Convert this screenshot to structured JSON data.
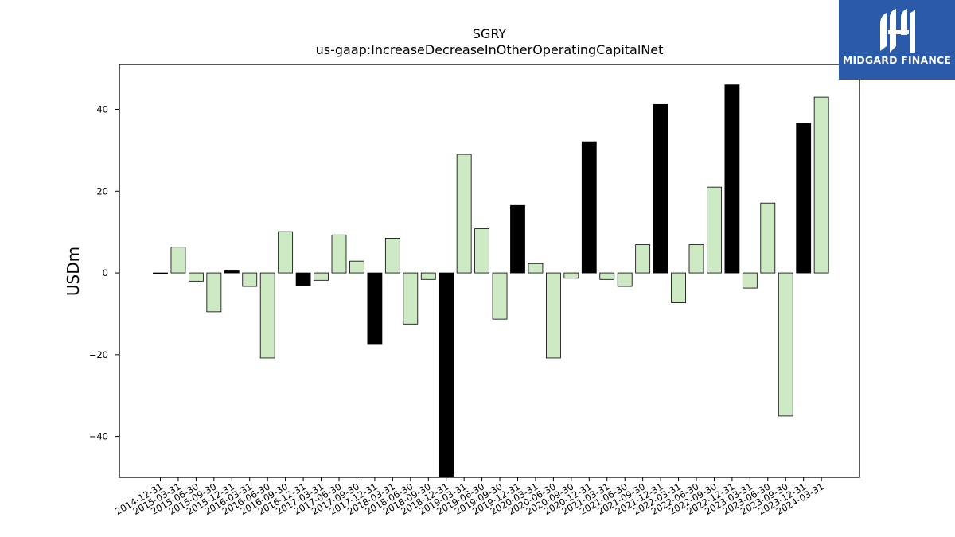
{
  "logo": {
    "text": "MIDGARD FINANCE",
    "bg_color": "#2b5aa9"
  },
  "chart_data": {
    "type": "bar",
    "title": "SGRY",
    "subtitle": "us-gaap:IncreaseDecreaseInOtherOperatingCapitalNet",
    "xlabel": "",
    "ylabel": "USDm",
    "ylim": [
      -50,
      51
    ],
    "yticks": [
      -40,
      -20,
      0,
      20,
      40
    ],
    "grid": false,
    "colors": {
      "regular": "#cdeac5",
      "highlight": "#000000",
      "edge": "#000000"
    },
    "categories": [
      "2014-12-31",
      "2015-03-31",
      "2015-06-30",
      "2015-09-30",
      "2015-12-31",
      "2016-03-31",
      "2016-06-30",
      "2016-09-30",
      "2016-12-31",
      "2017-03-31",
      "2017-06-30",
      "2017-09-30",
      "2017-12-31",
      "2018-03-31",
      "2018-06-30",
      "2018-09-30",
      "2018-12-31",
      "2019-03-31",
      "2019-06-30",
      "2019-09-30",
      "2019-12-31",
      "2020-03-31",
      "2020-06-30",
      "2020-09-30",
      "2020-12-31",
      "2021-03-31",
      "2021-06-30",
      "2021-09-30",
      "2021-12-31",
      "2022-03-31",
      "2022-06-30",
      "2022-09-30",
      "2022-12-31",
      "2023-03-31",
      "2023-06-30",
      "2023-09-30",
      "2023-12-31",
      "2024-03-31"
    ],
    "values": [
      -0.1,
      6.3,
      -2.0,
      -9.5,
      0.5,
      -3.3,
      -20.8,
      10.1,
      -3.2,
      -1.8,
      9.3,
      2.9,
      -17.5,
      8.5,
      -12.5,
      -1.6,
      -50.0,
      29.0,
      10.8,
      -11.3,
      16.5,
      2.3,
      -20.8,
      -1.3,
      32.1,
      -1.6,
      -3.3,
      6.9,
      41.2,
      -7.3,
      6.9,
      21.0,
      46.0,
      -3.7,
      17.1,
      -35.0,
      36.6,
      43.0
    ],
    "highlight": [
      false,
      false,
      false,
      false,
      true,
      false,
      false,
      false,
      true,
      false,
      false,
      false,
      true,
      false,
      false,
      false,
      true,
      false,
      false,
      false,
      true,
      false,
      false,
      false,
      true,
      false,
      false,
      false,
      true,
      false,
      false,
      false,
      true,
      false,
      false,
      false,
      true,
      false
    ]
  }
}
